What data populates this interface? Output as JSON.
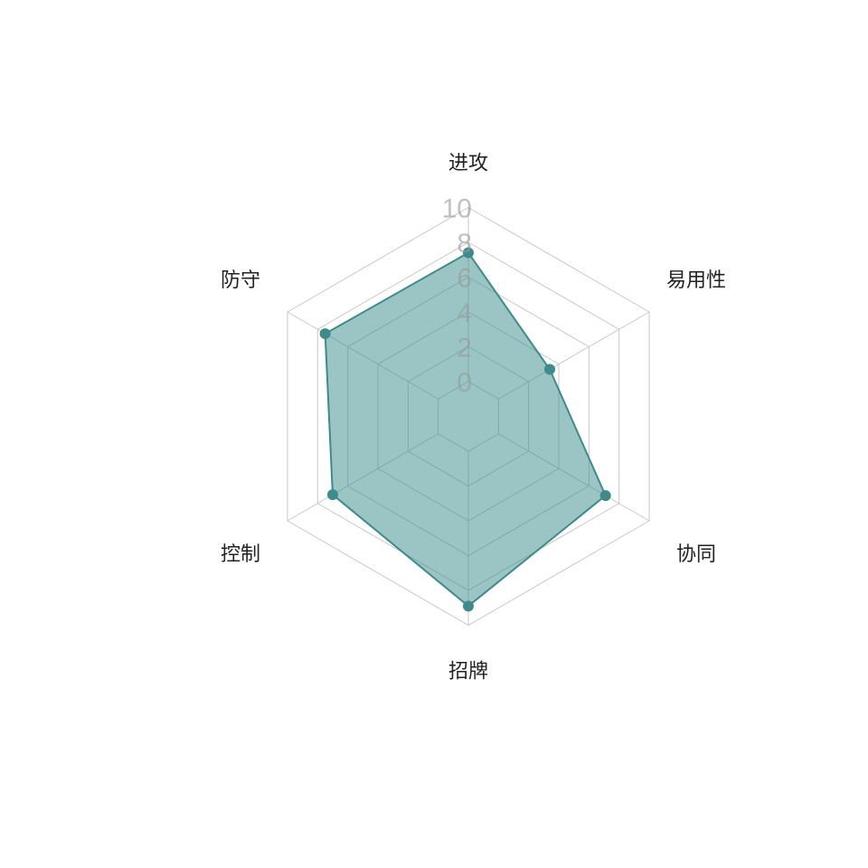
{
  "chart_data": {
    "type": "radar",
    "categories": [
      "进攻",
      "易用性",
      "协同",
      "招牌",
      "控制",
      "防守"
    ],
    "values": [
      7.4,
      3.4,
      7.1,
      8.9,
      7.0,
      7.5
    ],
    "ylim": [
      0,
      10
    ],
    "ticks": [
      "0",
      "2",
      "4",
      "6",
      "8",
      "10"
    ],
    "grid": true,
    "colors": {
      "fill": "#378b8b",
      "line": "#3f8a8a",
      "grid": "#c8c8c8"
    }
  }
}
